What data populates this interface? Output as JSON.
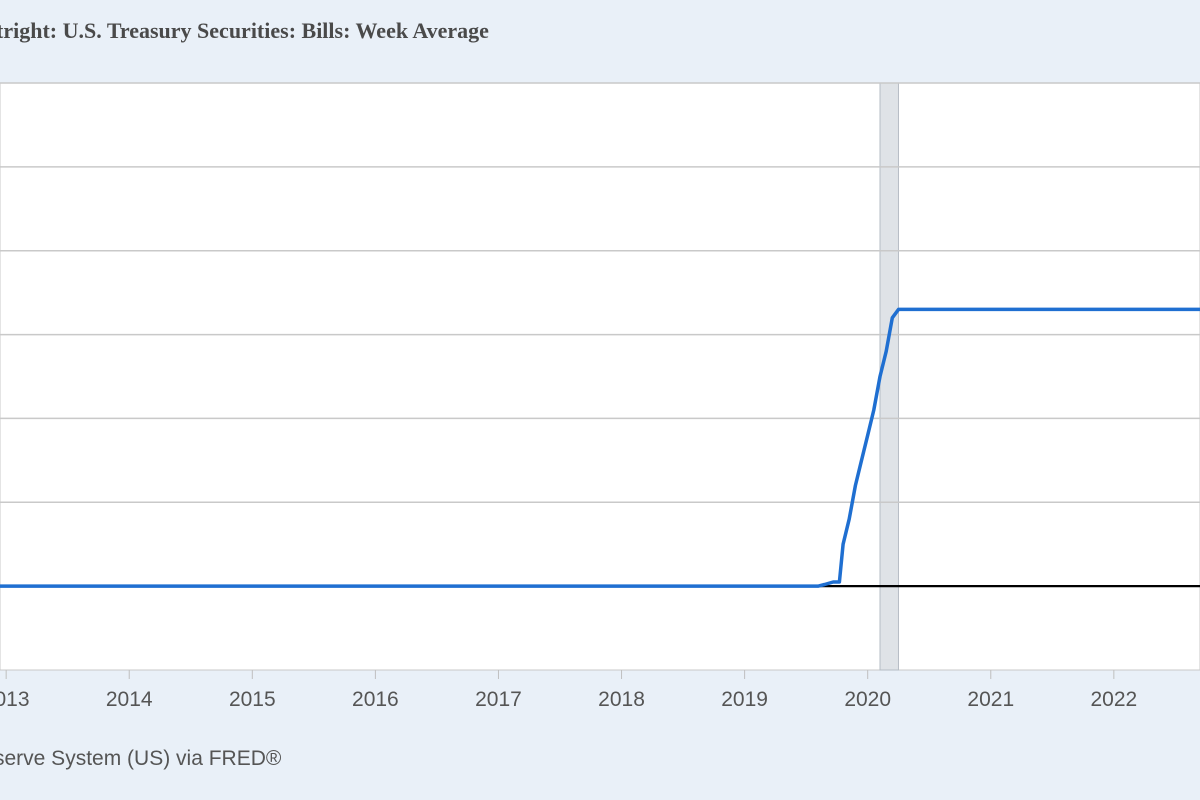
{
  "title": "tright: U.S. Treasury Securities: Bills: Week Average",
  "source": "serve System (US) via FRED®",
  "colors": {
    "background": "#e9f0f8",
    "plot": "#ffffff",
    "grid": "#c9c9c9",
    "series": "#1f6fd1",
    "zero_line": "#000000",
    "recession": "#dfe3e7"
  },
  "chart_data": {
    "type": "line",
    "title": "tright: U.S. Treasury Securities: Bills: Week Average",
    "xlabel": "",
    "ylabel": "",
    "x_tick_labels": [
      "2013",
      "2014",
      "2015",
      "2016",
      "2017",
      "2018",
      "2019",
      "2020",
      "2021",
      "2022"
    ],
    "xlim": [
      2012.95,
      2022.7
    ],
    "ylim": [
      -1,
      6
    ],
    "gridlines_y": [
      0,
      1,
      2,
      3,
      4,
      5,
      6
    ],
    "grid": true,
    "recession_shading": [
      [
        2020.1,
        2020.25
      ]
    ],
    "series": [
      {
        "x": [
          2012.95,
          2019.6,
          2019.65,
          2019.72,
          2019.77,
          2019.8,
          2019.85,
          2019.9,
          2019.95,
          2020.0,
          2020.05,
          2020.1,
          2020.15,
          2020.2,
          2020.25,
          2022.7
        ],
        "y": [
          0,
          0,
          0.02,
          0.05,
          0.05,
          0.5,
          0.8,
          1.2,
          1.5,
          1.8,
          2.1,
          2.5,
          2.8,
          3.2,
          3.3,
          3.3
        ]
      }
    ]
  }
}
